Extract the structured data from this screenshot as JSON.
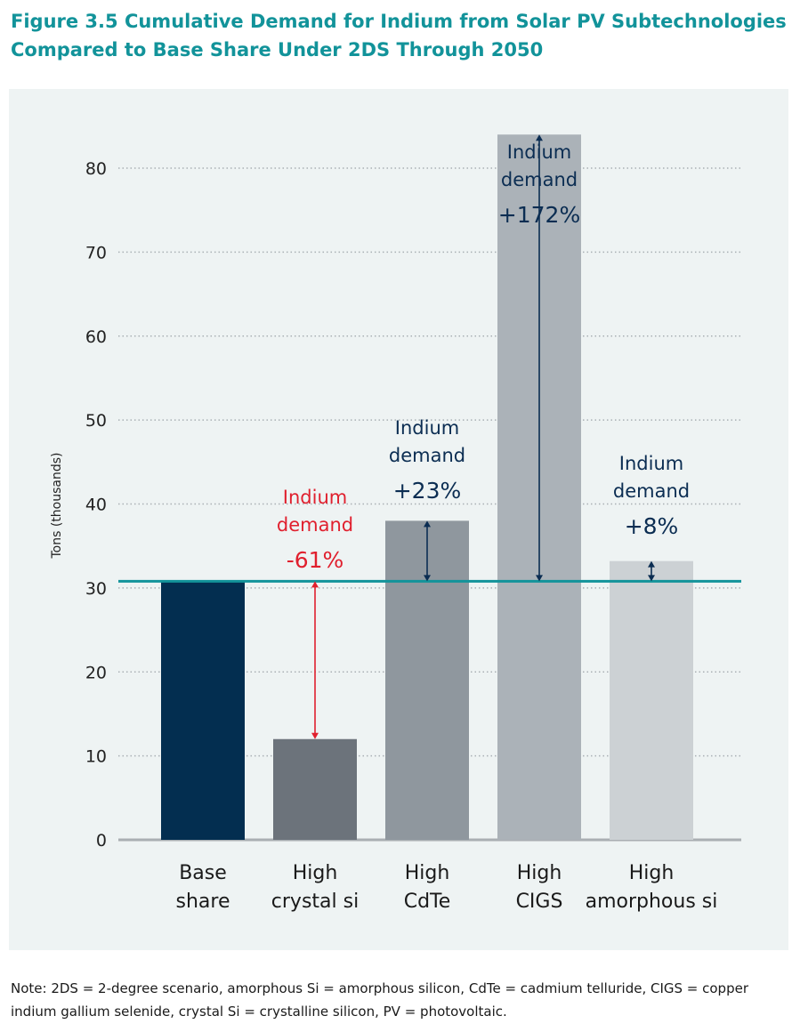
{
  "title_line1": "Figure 3.5 Cumulative Demand for Indium from Solar PV Subtechnologies",
  "title_line2": "Compared to Base Share Under 2DS Through 2050",
  "note": "Note: 2DS = 2-degree scenario, amorphous Si = amorphous silicon, CdTe = cadmium telluride, CIGS = copper indium gallium selenide, crystal Si = crystalline silicon, PV = photovoltaic.",
  "chart_data": {
    "type": "bar",
    "ylabel": "Tons (thousands)",
    "ylim": [
      0,
      85
    ],
    "yticks": [
      0,
      10,
      20,
      30,
      40,
      50,
      60,
      70,
      80
    ],
    "grid": "dotted horizontal",
    "categories": [
      [
        "Base",
        "share"
      ],
      [
        "High",
        "crystal si"
      ],
      [
        "High",
        "CdTe"
      ],
      [
        "High",
        "CIGS"
      ],
      [
        "High",
        "amorphous si"
      ]
    ],
    "values": [
      30.8,
      12,
      38,
      84,
      33.2
    ],
    "bar_colors": [
      "#032e50",
      "#6c737b",
      "#8f979e",
      "#abb2b8",
      "#ccd1d4"
    ],
    "reference_line": {
      "value": 30.8,
      "color": "#12939a"
    },
    "annotations": [
      {
        "bar": 1,
        "lines": [
          "Indium",
          "demand"
        ],
        "pct": "-61%",
        "color": "#e0202e"
      },
      {
        "bar": 2,
        "lines": [
          "Indium",
          "demand"
        ],
        "pct": "+23%",
        "color": "#0b2d52"
      },
      {
        "bar": 3,
        "lines": [
          "Indium",
          "demand"
        ],
        "pct": "+172%",
        "color": "#0b2d52"
      },
      {
        "bar": 4,
        "lines": [
          "Indium",
          "demand"
        ],
        "pct": "+8%",
        "color": "#0b2d52"
      }
    ]
  }
}
